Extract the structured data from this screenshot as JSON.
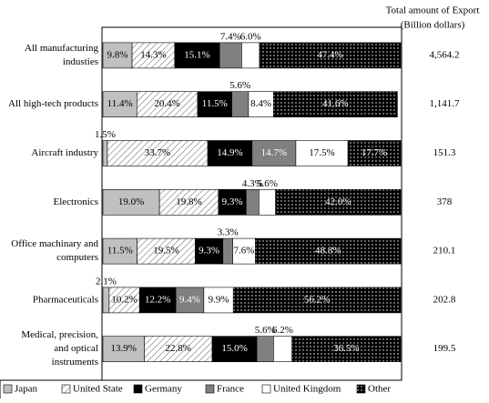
{
  "chart_data": {
    "type": "stacked-bar-100",
    "categories": [
      [
        "All manufacturing",
        "industies"
      ],
      [
        "All high-tech products"
      ],
      [
        "Aircraft industry"
      ],
      [
        "Electronics"
      ],
      [
        "Office machinary and",
        "computers"
      ],
      [
        "Pharmaceuticals"
      ],
      [
        "Medical, precision,",
        "and optical",
        "instruments"
      ]
    ],
    "series": [
      {
        "name": "Japan",
        "color": "#c0c0c0",
        "values": [
          9.8,
          11.4,
          1.5,
          19.0,
          11.5,
          2.1,
          13.9
        ],
        "value_labels": [
          "9.8%",
          "11.4%",
          "1.5%",
          "19.0%",
          "11.5%",
          "2.1%",
          "13.9%"
        ]
      },
      {
        "name": "United State",
        "color": "#ffffff",
        "pattern": "hatch",
        "values": [
          14.3,
          20.4,
          33.7,
          19.8,
          19.5,
          10.2,
          22.8
        ],
        "value_labels": [
          "14.3%",
          "20.4%",
          "33.7%",
          "19.8%",
          "19.5%",
          "10.2%",
          "22.8%"
        ]
      },
      {
        "name": "Germany",
        "color": "#000000",
        "values": [
          15.1,
          11.5,
          14.9,
          9.3,
          9.3,
          12.2,
          15.0
        ],
        "value_labels": [
          "15.1%",
          "11.5%",
          "14.9%",
          "9.3%",
          "9.3%",
          "12.2%",
          "15.0%"
        ]
      },
      {
        "name": "France",
        "color": "#808080",
        "values": [
          7.4,
          5.6,
          14.7,
          4.3,
          3.3,
          9.4,
          5.6
        ],
        "value_labels": [
          "7.4%",
          "5.6%",
          "14.7%",
          "4.3%",
          "3.3%",
          "9.4%",
          "5.6%"
        ]
      },
      {
        "name": "United Kingdom",
        "color": "#ffffff",
        "values": [
          6.0,
          8.4,
          17.5,
          5.6,
          7.6,
          9.9,
          6.2
        ],
        "value_labels": [
          "6.0%",
          "8.4%",
          "17.5%",
          "5.6%",
          "7.6%",
          "9.9%",
          "6.2%"
        ]
      },
      {
        "name": "Other",
        "color": "#000000",
        "pattern": "dots",
        "values": [
          47.4,
          41.6,
          17.7,
          42.0,
          48.8,
          56.2,
          36.5
        ],
        "value_labels": [
          "47.4%",
          "41.6%",
          "17.7%",
          "42.0%",
          "48.8%",
          "56.2%",
          "36.5%"
        ]
      }
    ],
    "totals": {
      "title": [
        "Total amount of Export",
        "(Billion dollars)"
      ],
      "values": [
        4564.2,
        1141.7,
        151.3,
        378,
        210.1,
        202.8,
        199.5
      ],
      "value_labels": [
        "4,564.2",
        "1,141.7",
        "151.3",
        "378",
        "210.1",
        "202.8",
        "199.5"
      ]
    },
    "xlim": [
      0,
      100
    ],
    "legend": "bottom"
  }
}
